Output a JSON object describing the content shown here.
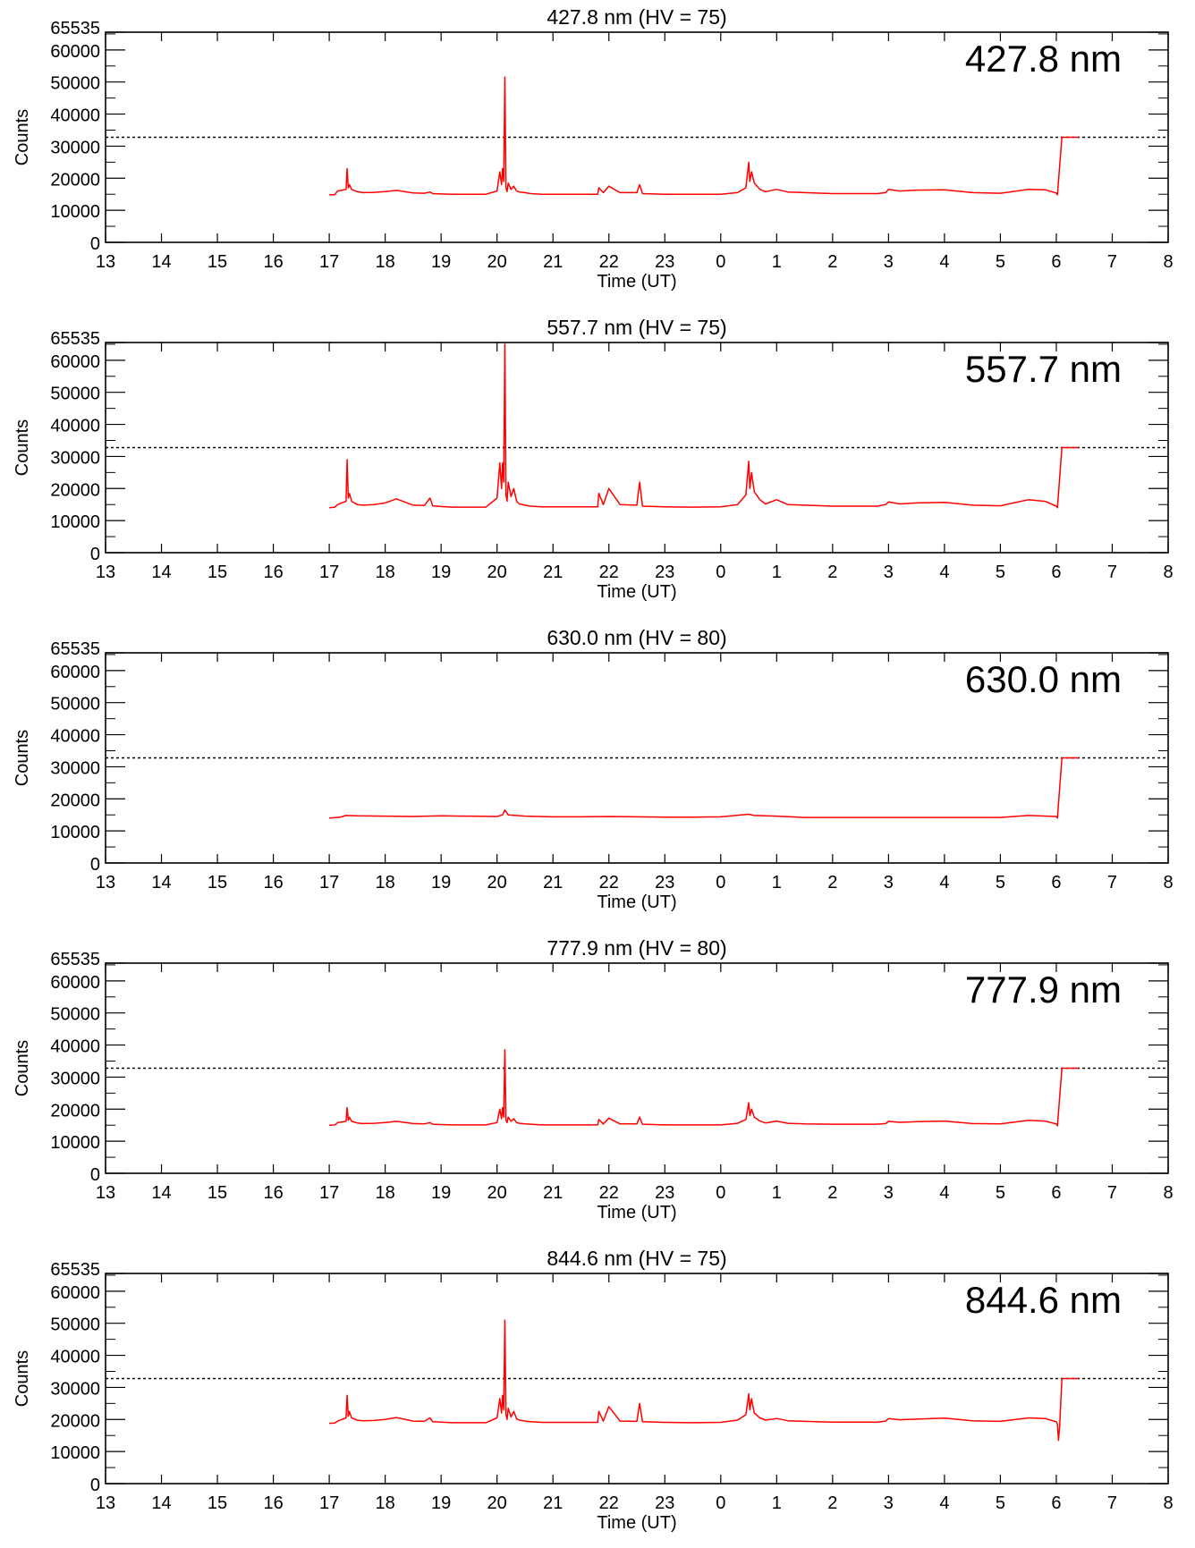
{
  "figure": {
    "trace_color": "#ff0000",
    "reference_color": "#000000"
  },
  "chart_data": [
    {
      "type": "line",
      "title": "427.8 nm (HV = 75)",
      "annotation": "427.8 nm",
      "xlabel": "Time (UT)",
      "ylabel": "Counts",
      "x_tick_labels": [
        "13",
        "14",
        "15",
        "16",
        "17",
        "18",
        "19",
        "20",
        "21",
        "22",
        "23",
        "0",
        "1",
        "2",
        "3",
        "4",
        "5",
        "6",
        "7",
        "8"
      ],
      "y_tick_labels": [
        "0",
        "10000",
        "20000",
        "30000",
        "40000",
        "50000",
        "60000",
        "65535"
      ],
      "y_ticks": [
        0,
        10000,
        20000,
        30000,
        40000,
        50000,
        60000,
        65535
      ],
      "xlim_hours_elapsed": [
        0,
        19
      ],
      "ylim": [
        0,
        65535
      ],
      "grid": false,
      "reference_line": {
        "y": 32768,
        "style": "dotted"
      },
      "series": [
        {
          "x_hours_elapsed": [
            4.0,
            4.1,
            4.15,
            4.3,
            4.32,
            4.34,
            4.36,
            4.4,
            4.5,
            4.6,
            4.8,
            5.0,
            5.2,
            5.5,
            5.7,
            5.8,
            5.85,
            6.0,
            6.2,
            6.5,
            6.8,
            7.0,
            7.05,
            7.08,
            7.1,
            7.12,
            7.14,
            7.16,
            7.18,
            7.2,
            7.25,
            7.3,
            7.35,
            7.4,
            7.5,
            7.6,
            7.8,
            8.0,
            8.5,
            8.8,
            8.82,
            8.9,
            9.0,
            9.2,
            9.5,
            9.55,
            9.6,
            10.0,
            10.5,
            11.0,
            11.3,
            11.45,
            11.5,
            11.52,
            11.55,
            11.6,
            11.7,
            11.8,
            12.0,
            12.2,
            12.5,
            13.0,
            13.5,
            13.8,
            13.95,
            14.0,
            14.2,
            14.5,
            15.0,
            15.5,
            16.0,
            16.5,
            16.8,
            17.0,
            17.02,
            17.1,
            17.4
          ],
          "y": [
            14800,
            14900,
            16000,
            16500,
            23000,
            17000,
            18000,
            16500,
            15800,
            15500,
            15600,
            15800,
            16200,
            15400,
            15300,
            15700,
            15200,
            15100,
            15000,
            15000,
            15000,
            16000,
            22000,
            18000,
            23000,
            19000,
            51500,
            17000,
            15800,
            18500,
            16500,
            17500,
            16000,
            15700,
            15500,
            15200,
            15000,
            15000,
            15000,
            15000,
            17000,
            15500,
            17500,
            15500,
            15500,
            18000,
            15200,
            15000,
            15000,
            15000,
            15500,
            17000,
            25000,
            19000,
            22000,
            18500,
            16500,
            15800,
            16500,
            15700,
            15500,
            15200,
            15200,
            15200,
            15500,
            16500,
            16000,
            16300,
            16400,
            15500,
            15300,
            16500,
            16400,
            15400,
            14800,
            32768,
            32768
          ]
        }
      ]
    },
    {
      "type": "line",
      "title": "557.7 nm (HV = 75)",
      "annotation": "557.7 nm",
      "xlabel": "Time (UT)",
      "ylabel": "Counts",
      "x_tick_labels": [
        "13",
        "14",
        "15",
        "16",
        "17",
        "18",
        "19",
        "20",
        "21",
        "22",
        "23",
        "0",
        "1",
        "2",
        "3",
        "4",
        "5",
        "6",
        "7",
        "8"
      ],
      "y_tick_labels": [
        "0",
        "10000",
        "20000",
        "30000",
        "40000",
        "50000",
        "60000",
        "65535"
      ],
      "y_ticks": [
        0,
        10000,
        20000,
        30000,
        40000,
        50000,
        60000,
        65535
      ],
      "xlim_hours_elapsed": [
        0,
        19
      ],
      "ylim": [
        0,
        65535
      ],
      "grid": false,
      "reference_line": {
        "y": 32768,
        "style": "dotted"
      },
      "series": [
        {
          "x_hours_elapsed": [
            4.0,
            4.1,
            4.15,
            4.3,
            4.32,
            4.34,
            4.36,
            4.4,
            4.5,
            4.6,
            4.8,
            5.0,
            5.2,
            5.5,
            5.7,
            5.8,
            5.85,
            6.0,
            6.2,
            6.5,
            6.8,
            7.0,
            7.05,
            7.08,
            7.1,
            7.12,
            7.14,
            7.16,
            7.18,
            7.2,
            7.25,
            7.3,
            7.35,
            7.4,
            7.5,
            7.6,
            7.8,
            8.0,
            8.5,
            8.8,
            8.82,
            8.9,
            9.0,
            9.2,
            9.5,
            9.55,
            9.6,
            10.0,
            10.5,
            11.0,
            11.3,
            11.45,
            11.5,
            11.52,
            11.55,
            11.6,
            11.7,
            11.8,
            12.0,
            12.2,
            12.5,
            13.0,
            13.5,
            13.8,
            13.95,
            14.0,
            14.2,
            14.5,
            15.0,
            15.5,
            16.0,
            16.5,
            16.8,
            17.0,
            17.02,
            17.1,
            17.4
          ],
          "y": [
            14000,
            14200,
            15000,
            16000,
            29000,
            17000,
            18500,
            16000,
            15000,
            14800,
            15000,
            15500,
            16800,
            14800,
            14700,
            17000,
            14600,
            14400,
            14200,
            14200,
            14200,
            17000,
            28000,
            20000,
            28000,
            22000,
            65000,
            18000,
            16000,
            22000,
            17500,
            20000,
            16000,
            15200,
            14800,
            14500,
            14300,
            14300,
            14300,
            14300,
            18500,
            15000,
            20000,
            15000,
            14800,
            22000,
            14500,
            14300,
            14200,
            14300,
            15000,
            18000,
            28500,
            20000,
            25000,
            19000,
            16500,
            15200,
            16500,
            15000,
            14800,
            14500,
            14500,
            14500,
            15000,
            15800,
            15200,
            15500,
            15700,
            14800,
            14600,
            16500,
            16000,
            14500,
            14000,
            32768,
            32768
          ]
        }
      ]
    },
    {
      "type": "line",
      "title": "630.0 nm (HV = 80)",
      "annotation": "630.0 nm",
      "xlabel": "Time (UT)",
      "ylabel": "Counts",
      "x_tick_labels": [
        "13",
        "14",
        "15",
        "16",
        "17",
        "18",
        "19",
        "20",
        "21",
        "22",
        "23",
        "0",
        "1",
        "2",
        "3",
        "4",
        "5",
        "6",
        "7",
        "8"
      ],
      "y_tick_labels": [
        "0",
        "10000",
        "20000",
        "30000",
        "40000",
        "50000",
        "60000",
        "65535"
      ],
      "y_ticks": [
        0,
        10000,
        20000,
        30000,
        40000,
        50000,
        60000,
        65535
      ],
      "xlim_hours_elapsed": [
        0,
        19
      ],
      "ylim": [
        0,
        65535
      ],
      "grid": false,
      "reference_line": {
        "y": 32768,
        "style": "dotted"
      },
      "series": [
        {
          "x_hours_elapsed": [
            4.0,
            4.2,
            4.3,
            4.5,
            5.0,
            5.5,
            6.0,
            6.5,
            7.0,
            7.1,
            7.14,
            7.2,
            7.5,
            8.0,
            8.5,
            9.0,
            9.5,
            10.0,
            10.5,
            11.0,
            11.5,
            11.6,
            12.0,
            12.5,
            13.0,
            13.5,
            14.0,
            14.5,
            15.0,
            15.5,
            16.0,
            16.5,
            17.0,
            17.02,
            17.1,
            17.4
          ],
          "y": [
            14000,
            14300,
            14800,
            14700,
            14600,
            14500,
            14700,
            14600,
            14500,
            15000,
            16500,
            15000,
            14600,
            14400,
            14400,
            14500,
            14400,
            14300,
            14300,
            14400,
            15200,
            14800,
            14600,
            14200,
            14200,
            14200,
            14200,
            14200,
            14200,
            14200,
            14200,
            14800,
            14500,
            14000,
            32768,
            32768
          ]
        }
      ]
    },
    {
      "type": "line",
      "title": "777.9 nm (HV = 80)",
      "annotation": "777.9 nm",
      "xlabel": "Time (UT)",
      "ylabel": "Counts",
      "x_tick_labels": [
        "13",
        "14",
        "15",
        "16",
        "17",
        "18",
        "19",
        "20",
        "21",
        "22",
        "23",
        "0",
        "1",
        "2",
        "3",
        "4",
        "5",
        "6",
        "7",
        "8"
      ],
      "y_tick_labels": [
        "0",
        "10000",
        "20000",
        "30000",
        "40000",
        "50000",
        "60000",
        "65535"
      ],
      "y_ticks": [
        0,
        10000,
        20000,
        30000,
        40000,
        50000,
        60000,
        65535
      ],
      "xlim_hours_elapsed": [
        0,
        19
      ],
      "ylim": [
        0,
        65535
      ],
      "grid": false,
      "reference_line": {
        "y": 32768,
        "style": "dotted"
      },
      "series": [
        {
          "x_hours_elapsed": [
            4.0,
            4.1,
            4.15,
            4.3,
            4.32,
            4.34,
            4.36,
            4.4,
            4.5,
            4.6,
            4.8,
            5.0,
            5.2,
            5.5,
            5.7,
            5.8,
            5.85,
            6.0,
            6.2,
            6.5,
            6.8,
            7.0,
            7.05,
            7.08,
            7.1,
            7.12,
            7.14,
            7.16,
            7.18,
            7.2,
            7.25,
            7.3,
            7.35,
            7.4,
            7.5,
            7.6,
            7.8,
            8.0,
            8.5,
            8.8,
            8.82,
            8.9,
            9.0,
            9.2,
            9.5,
            9.55,
            9.6,
            10.0,
            10.5,
            11.0,
            11.3,
            11.45,
            11.5,
            11.52,
            11.55,
            11.6,
            11.7,
            11.8,
            12.0,
            12.2,
            12.5,
            13.0,
            13.5,
            13.8,
            13.95,
            14.0,
            14.2,
            14.5,
            15.0,
            15.5,
            16.0,
            16.5,
            16.8,
            17.0,
            17.02,
            17.1,
            17.4
          ],
          "y": [
            15000,
            15100,
            15800,
            16200,
            20500,
            16500,
            17500,
            16200,
            15700,
            15500,
            15600,
            15800,
            16200,
            15500,
            15400,
            15800,
            15300,
            15200,
            15100,
            15100,
            15100,
            15800,
            20000,
            17000,
            20500,
            17500,
            38500,
            16500,
            15800,
            17500,
            16200,
            17000,
            15800,
            15600,
            15400,
            15300,
            15100,
            15100,
            15100,
            15100,
            16800,
            15400,
            17200,
            15400,
            15400,
            17500,
            15300,
            15100,
            15100,
            15100,
            15600,
            16800,
            22000,
            18000,
            20000,
            17500,
            16300,
            15700,
            16300,
            15600,
            15400,
            15300,
            15300,
            15300,
            15500,
            16200,
            15900,
            16100,
            16300,
            15500,
            15400,
            16500,
            16300,
            15400,
            14800,
            32768,
            32768
          ]
        }
      ]
    },
    {
      "type": "line",
      "title": "844.6 nm (HV = 75)",
      "annotation": "844.6 nm",
      "xlabel": "Time (UT)",
      "ylabel": "Counts",
      "x_tick_labels": [
        "13",
        "14",
        "15",
        "16",
        "17",
        "18",
        "19",
        "20",
        "21",
        "22",
        "23",
        "0",
        "1",
        "2",
        "3",
        "4",
        "5",
        "6",
        "7",
        "8"
      ],
      "y_tick_labels": [
        "0",
        "10000",
        "20000",
        "30000",
        "40000",
        "50000",
        "60000",
        "65535"
      ],
      "y_ticks": [
        0,
        10000,
        20000,
        30000,
        40000,
        50000,
        60000,
        65535
      ],
      "xlim_hours_elapsed": [
        0,
        19
      ],
      "ylim": [
        0,
        65535
      ],
      "grid": false,
      "reference_line": {
        "y": 32768,
        "style": "dotted"
      },
      "series": [
        {
          "x_hours_elapsed": [
            4.0,
            4.1,
            4.15,
            4.3,
            4.32,
            4.34,
            4.36,
            4.4,
            4.5,
            4.6,
            4.8,
            5.0,
            5.2,
            5.5,
            5.7,
            5.8,
            5.85,
            6.0,
            6.2,
            6.5,
            6.8,
            7.0,
            7.05,
            7.08,
            7.1,
            7.12,
            7.14,
            7.16,
            7.18,
            7.2,
            7.25,
            7.3,
            7.35,
            7.4,
            7.5,
            7.6,
            7.8,
            8.0,
            8.5,
            8.8,
            8.82,
            8.9,
            9.0,
            9.2,
            9.5,
            9.55,
            9.6,
            10.0,
            10.5,
            11.0,
            11.3,
            11.45,
            11.5,
            11.52,
            11.55,
            11.6,
            11.7,
            11.8,
            12.0,
            12.2,
            12.5,
            13.0,
            13.5,
            13.8,
            13.95,
            14.0,
            14.2,
            14.5,
            15.0,
            15.5,
            16.0,
            16.5,
            16.8,
            17.0,
            17.02,
            17.04,
            17.06,
            17.1,
            17.4
          ],
          "y": [
            18800,
            18900,
            19500,
            20500,
            27500,
            21000,
            22500,
            20500,
            19800,
            19600,
            19700,
            20000,
            20600,
            19500,
            19400,
            20500,
            19300,
            19200,
            19000,
            19000,
            19000,
            20500,
            26500,
            22000,
            27500,
            23000,
            51000,
            21500,
            20000,
            23500,
            20800,
            22500,
            20200,
            19800,
            19500,
            19300,
            19100,
            19100,
            19100,
            19100,
            22500,
            19500,
            24000,
            19500,
            19400,
            25000,
            19300,
            19100,
            19000,
            19100,
            19800,
            21500,
            28000,
            23000,
            26500,
            22000,
            20500,
            19800,
            20300,
            19600,
            19400,
            19200,
            19200,
            19200,
            19500,
            20300,
            19900,
            20100,
            20400,
            19600,
            19400,
            20500,
            20300,
            19300,
            18500,
            13500,
            18000,
            32768,
            32768
          ]
        }
      ]
    }
  ]
}
